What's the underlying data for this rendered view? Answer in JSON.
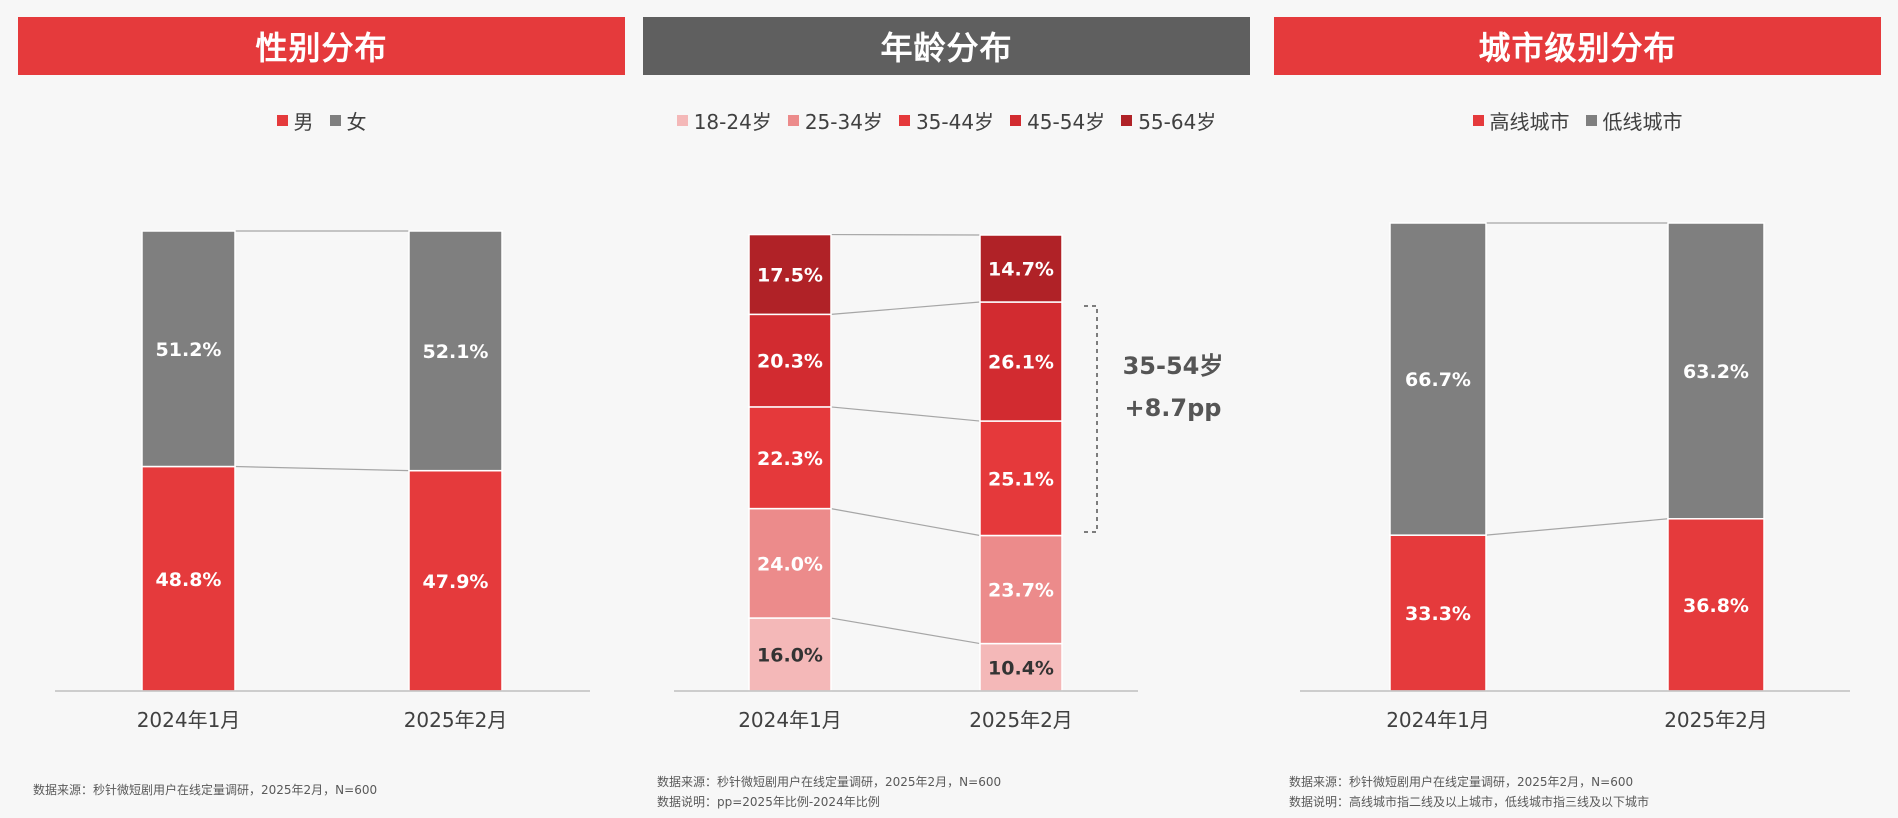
{
  "panels": {
    "gender": {
      "title": "性别分布",
      "title_bg": "#e53a3c"
    },
    "age": {
      "title": "年龄分布",
      "title_bg": "#5f5f5f"
    },
    "city": {
      "title": "城市级别分布",
      "title_bg": "#e53a3c"
    }
  },
  "chart_data": [
    {
      "type": "bar",
      "stacked": true,
      "title": "性别分布",
      "categories": [
        "2024年1月",
        "2025年2月"
      ],
      "series": [
        {
          "name": "男",
          "values": [
            48.8,
            47.9
          ],
          "labels": [
            "48.8%",
            "47.9%"
          ],
          "color": "#e53a3c",
          "text_color": "#ffffff"
        },
        {
          "name": "女",
          "values": [
            51.2,
            52.1
          ],
          "labels": [
            "51.2%",
            "52.1%"
          ],
          "color": "#7f7f7f",
          "text_color": "#ffffff"
        }
      ],
      "ylim": [
        0,
        100
      ],
      "grid": false,
      "legend": "top"
    },
    {
      "type": "bar",
      "stacked": true,
      "title": "年龄分布",
      "categories": [
        "2024年1月",
        "2025年2月"
      ],
      "series": [
        {
          "name": "18-24岁",
          "values": [
            16.0,
            10.4
          ],
          "labels": [
            "16.0%",
            "10.4%"
          ],
          "color": "#f4b8b8",
          "text_color": "#333333"
        },
        {
          "name": "25-34岁",
          "values": [
            24.0,
            23.7
          ],
          "labels": [
            "24.0%",
            "23.7%"
          ],
          "color": "#ec8b8b",
          "text_color": "#ffffff"
        },
        {
          "name": "35-44岁",
          "values": [
            22.3,
            25.1
          ],
          "labels": [
            "22.3%",
            "25.1%"
          ],
          "color": "#e5393b",
          "text_color": "#ffffff"
        },
        {
          "name": "45-54岁",
          "values": [
            20.3,
            26.1
          ],
          "labels": [
            "20.3%",
            "26.1%"
          ],
          "color": "#d22b30",
          "text_color": "#ffffff"
        },
        {
          "name": "55-64岁",
          "values": [
            17.5,
            14.7
          ],
          "labels": [
            "17.5%",
            "14.7%"
          ],
          "color": "#b02227",
          "text_color": "#ffffff"
        }
      ],
      "ylim": [
        0,
        100
      ],
      "grid": false,
      "legend": "top",
      "annotation": {
        "line1": "35-54岁",
        "line2": "+8.7pp"
      }
    },
    {
      "type": "bar",
      "stacked": true,
      "title": "城市级别分布",
      "categories": [
        "2024年1月",
        "2025年2月"
      ],
      "series": [
        {
          "name": "高线城市",
          "values": [
            33.3,
            36.8
          ],
          "labels": [
            "33.3%",
            "36.8%"
          ],
          "color": "#e53a3c",
          "text_color": "#ffffff"
        },
        {
          "name": "低线城市",
          "values": [
            66.7,
            63.2
          ],
          "labels": [
            "66.7%",
            "63.2%"
          ],
          "color": "#7f7f7f",
          "text_color": "#ffffff"
        }
      ],
      "ylim": [
        0,
        100
      ],
      "grid": false,
      "legend": "top"
    }
  ],
  "notes": {
    "gender": {
      "source": "数据来源：秒针微短剧用户在线定量调研，2025年2月，N=600"
    },
    "age": {
      "source": "数据来源：秒针微短剧用户在线定量调研，2025年2月，N=600",
      "explain": "数据说明：pp=2025年比例-2024年比例"
    },
    "city": {
      "source": "数据来源：秒针微短剧用户在线定量调研，2025年2月，N=600",
      "explain": "数据说明：高线城市指二线及以上城市，低线城市指三线及以下城市"
    }
  }
}
